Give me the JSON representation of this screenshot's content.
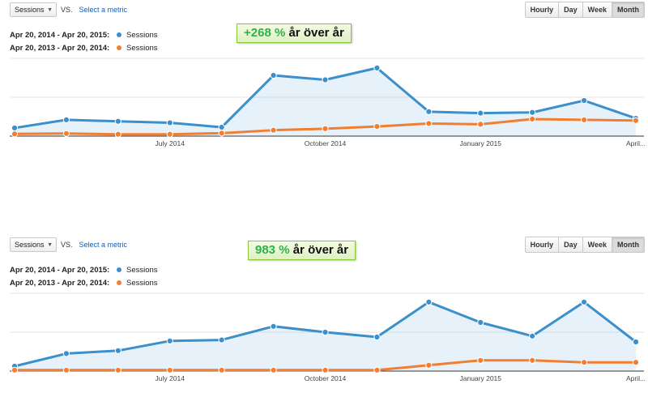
{
  "panels": [
    {
      "metric_select": "Sessions",
      "vs": "VS.",
      "select_metric": "Select a metric",
      "buttons": [
        "Hourly",
        "Day",
        "Week",
        "Month"
      ],
      "active_button": "Month",
      "legend": [
        {
          "range": "Apr 20, 2014 - Apr 20, 2015:",
          "series": "Sessions",
          "color": "#3b8fcb"
        },
        {
          "range": "Apr 20, 2013 - Apr 20, 2014:",
          "series": "Sessions",
          "color": "#f07f33"
        }
      ],
      "badge": {
        "pct": "+268 %",
        "text": "år över år"
      }
    },
    {
      "metric_select": "Sessions",
      "vs": "VS.",
      "select_metric": "Select a metric",
      "buttons": [
        "Hourly",
        "Day",
        "Week",
        "Month"
      ],
      "active_button": "Month",
      "legend": [
        {
          "range": "Apr 20, 2014 - Apr 20, 2015:",
          "series": "Sessions",
          "color": "#3b8fcb"
        },
        {
          "range": "Apr 20, 2013 - Apr 20, 2014:",
          "series": "Sessions",
          "color": "#f07f33"
        }
      ],
      "badge": {
        "pct": "983 %",
        "text": "år över år"
      }
    }
  ],
  "chart_data": [
    {
      "type": "area",
      "x": [
        "Apr 2014",
        "May 2014",
        "Jun 2014",
        "Jul 2014",
        "Aug 2014",
        "Sep 2014",
        "Oct 2014",
        "Nov 2014",
        "Dec 2014",
        "Jan 2015",
        "Feb 2015",
        "Mar 2015",
        "Apr 2015"
      ],
      "x_tick_labels": [
        {
          "label": "July 2014",
          "at": "Jul 2014"
        },
        {
          "label": "October 2014",
          "at": "Oct 2014"
        },
        {
          "label": "January 2015",
          "at": "Jan 2015"
        },
        {
          "label": "April...",
          "at": "Apr 2015"
        }
      ],
      "series": [
        {
          "name": "Sessions",
          "color": "#3b8fcb",
          "values": [
            11,
            22,
            20,
            18,
            12,
            82,
            76,
            92,
            33,
            31,
            32,
            48,
            24
          ],
          "area": true
        },
        {
          "name": "Sessions",
          "color": "#f07f33",
          "values": [
            3,
            3.5,
            2.5,
            2.5,
            4,
            8,
            10,
            13,
            17,
            16,
            23,
            22,
            21
          ],
          "area": false
        }
      ],
      "ylim": [
        0,
        105
      ],
      "grid": true
    },
    {
      "type": "area",
      "x": [
        "Apr 2014",
        "May 2014",
        "Jun 2014",
        "Jul 2014",
        "Aug 2014",
        "Sep 2014",
        "Oct 2014",
        "Nov 2014",
        "Dec 2014",
        "Jan 2015",
        "Feb 2015",
        "Mar 2015",
        "Apr 2015"
      ],
      "x_tick_labels": [
        {
          "label": "July 2014",
          "at": "Jul 2014"
        },
        {
          "label": "October 2014",
          "at": "Oct 2014"
        },
        {
          "label": "January 2015",
          "at": "Jan 2015"
        },
        {
          "label": "April...",
          "at": "Apr 2015"
        }
      ],
      "series": [
        {
          "name": "Sessions",
          "color": "#3b8fcb",
          "values": [
            5,
            18,
            21,
            31,
            32,
            46,
            40,
            35,
            71,
            50,
            36,
            71,
            30
          ],
          "area": true
        },
        {
          "name": "Sessions",
          "color": "#f07f33",
          "values": [
            1,
            1,
            1,
            1,
            1,
            1,
            1,
            1,
            6,
            11,
            11,
            9,
            9
          ],
          "area": false
        }
      ],
      "ylim": [
        0,
        80
      ],
      "grid": true
    }
  ]
}
